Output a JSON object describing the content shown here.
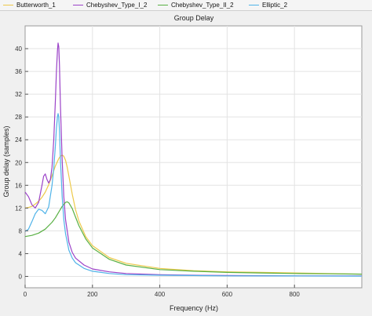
{
  "legend": [
    {
      "label": "Butterworth_1",
      "color": "#EDC949"
    },
    {
      "label": "Chebyshev_Type_I_2",
      "color": "#9B42C8"
    },
    {
      "label": "Chebyshev_Type_II_2",
      "color": "#59B044"
    },
    {
      "label": "Elliptic_2",
      "color": "#4FB3E8"
    }
  ],
  "chart_data": {
    "type": "line",
    "title": "Group Delay",
    "xlabel": "Frequency (Hz)",
    "ylabel": "Group delay (samples)",
    "xlim": [
      0,
      1000
    ],
    "ylim": [
      -2,
      44
    ],
    "xticks": [
      0,
      200,
      400,
      600,
      800
    ],
    "yticks": [
      0,
      4,
      8,
      12,
      16,
      20,
      24,
      28,
      32,
      36,
      40
    ],
    "grid": true,
    "legend_position": "top",
    "series": [
      {
        "name": "Butterworth_1",
        "color": "#EDC949",
        "x": [
          0,
          10,
          20,
          30,
          40,
          50,
          60,
          70,
          80,
          90,
          100,
          105,
          110,
          115,
          120,
          125,
          130,
          140,
          150,
          160,
          180,
          200,
          250,
          300,
          400,
          500,
          600,
          700,
          800,
          900,
          1000
        ],
        "y": [
          12.0,
          12.1,
          12.3,
          12.7,
          13.2,
          13.9,
          14.8,
          16.1,
          17.7,
          19.4,
          20.7,
          21.1,
          21.3,
          21.1,
          20.4,
          19.2,
          17.6,
          14.4,
          11.7,
          9.7,
          7.0,
          5.4,
          3.3,
          2.3,
          1.4,
          1.0,
          0.8,
          0.7,
          0.6,
          0.5,
          0.4
        ]
      },
      {
        "name": "Chebyshev_Type_I_2",
        "color": "#9B42C8",
        "x": [
          0,
          10,
          20,
          30,
          40,
          50,
          55,
          60,
          65,
          70,
          75,
          80,
          85,
          90,
          93,
          96,
          98,
          100,
          102,
          105,
          110,
          115,
          120,
          130,
          140,
          150,
          175,
          200,
          250,
          300,
          400,
          500,
          600,
          800,
          1000
        ],
        "y": [
          14.8,
          14.0,
          12.6,
          12.0,
          13.0,
          16.0,
          17.6,
          18.0,
          17.0,
          16.4,
          17.0,
          19.2,
          24.0,
          31.0,
          36.0,
          39.6,
          41.0,
          40.3,
          37.0,
          30.0,
          20.5,
          14.0,
          10.0,
          6.0,
          4.2,
          3.2,
          2.0,
          1.3,
          0.8,
          0.5,
          0.3,
          0.2,
          0.15,
          0.1,
          0.1
        ]
      },
      {
        "name": "Chebyshev_Type_II_2",
        "color": "#59B044",
        "x": [
          0,
          20,
          40,
          60,
          80,
          90,
          100,
          110,
          120,
          125,
          130,
          140,
          150,
          160,
          180,
          200,
          250,
          300,
          400,
          500,
          600,
          700,
          800,
          900,
          1000
        ],
        "y": [
          7.0,
          7.2,
          7.6,
          8.3,
          9.5,
          10.3,
          11.3,
          12.3,
          13.0,
          13.1,
          12.9,
          11.9,
          10.4,
          8.9,
          6.6,
          5.0,
          3.0,
          2.0,
          1.2,
          0.9,
          0.7,
          0.6,
          0.5,
          0.45,
          0.4
        ]
      },
      {
        "name": "Elliptic_2",
        "color": "#4FB3E8",
        "x": [
          0,
          10,
          20,
          30,
          40,
          50,
          60,
          70,
          80,
          85,
          90,
          93,
          96,
          98,
          100,
          102,
          105,
          110,
          115,
          120,
          130,
          140,
          150,
          175,
          200,
          250,
          300,
          400,
          500,
          600,
          800,
          1000
        ],
        "y": [
          7.9,
          8.3,
          9.6,
          11.0,
          11.8,
          11.6,
          11.0,
          12.2,
          16.0,
          19.0,
          23.0,
          26.0,
          28.0,
          28.6,
          28.0,
          25.5,
          20.5,
          14.0,
          10.0,
          7.5,
          4.6,
          3.2,
          2.4,
          1.4,
          0.9,
          0.5,
          0.3,
          0.2,
          0.15,
          0.1,
          0.08,
          0.05
        ]
      }
    ]
  }
}
